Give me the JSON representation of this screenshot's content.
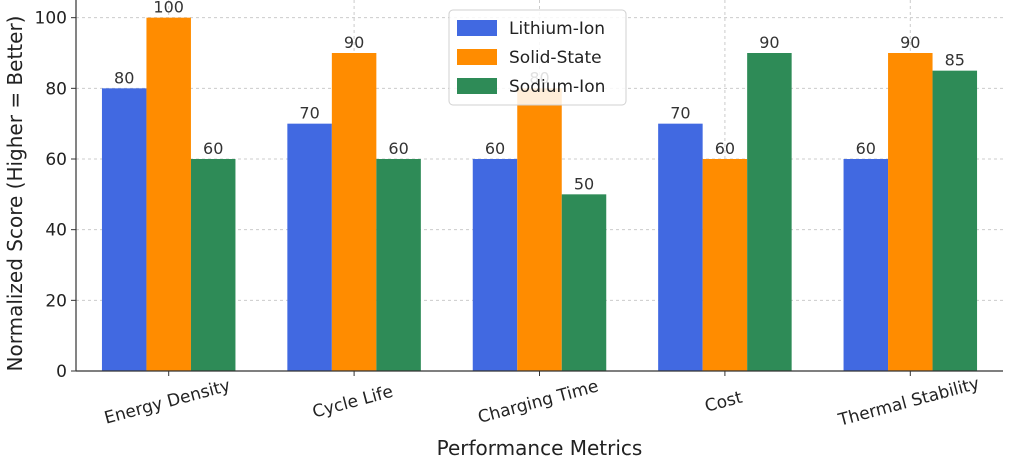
{
  "chart_data": {
    "type": "bar",
    "title": "",
    "xlabel": "Performance Metrics",
    "ylabel": "Normalized Score (Higher = Better)",
    "ylim": [
      0,
      105
    ],
    "yticks": [
      0,
      20,
      40,
      60,
      80,
      100
    ],
    "grid": true,
    "legend_position": "top-center",
    "categories": [
      "Energy Density",
      "Cycle Life",
      "Charging Time",
      "Cost",
      "Thermal Stability"
    ],
    "series": [
      {
        "name": "Lithium-Ion",
        "color": "#4169e1",
        "values": [
          80,
          70,
          60,
          70,
          60
        ]
      },
      {
        "name": "Solid-State",
        "color": "#ff8c00",
        "values": [
          100,
          90,
          80,
          60,
          90
        ]
      },
      {
        "name": "Sodium-Ion",
        "color": "#2e8b57",
        "values": [
          60,
          60,
          50,
          90,
          85
        ]
      }
    ]
  }
}
